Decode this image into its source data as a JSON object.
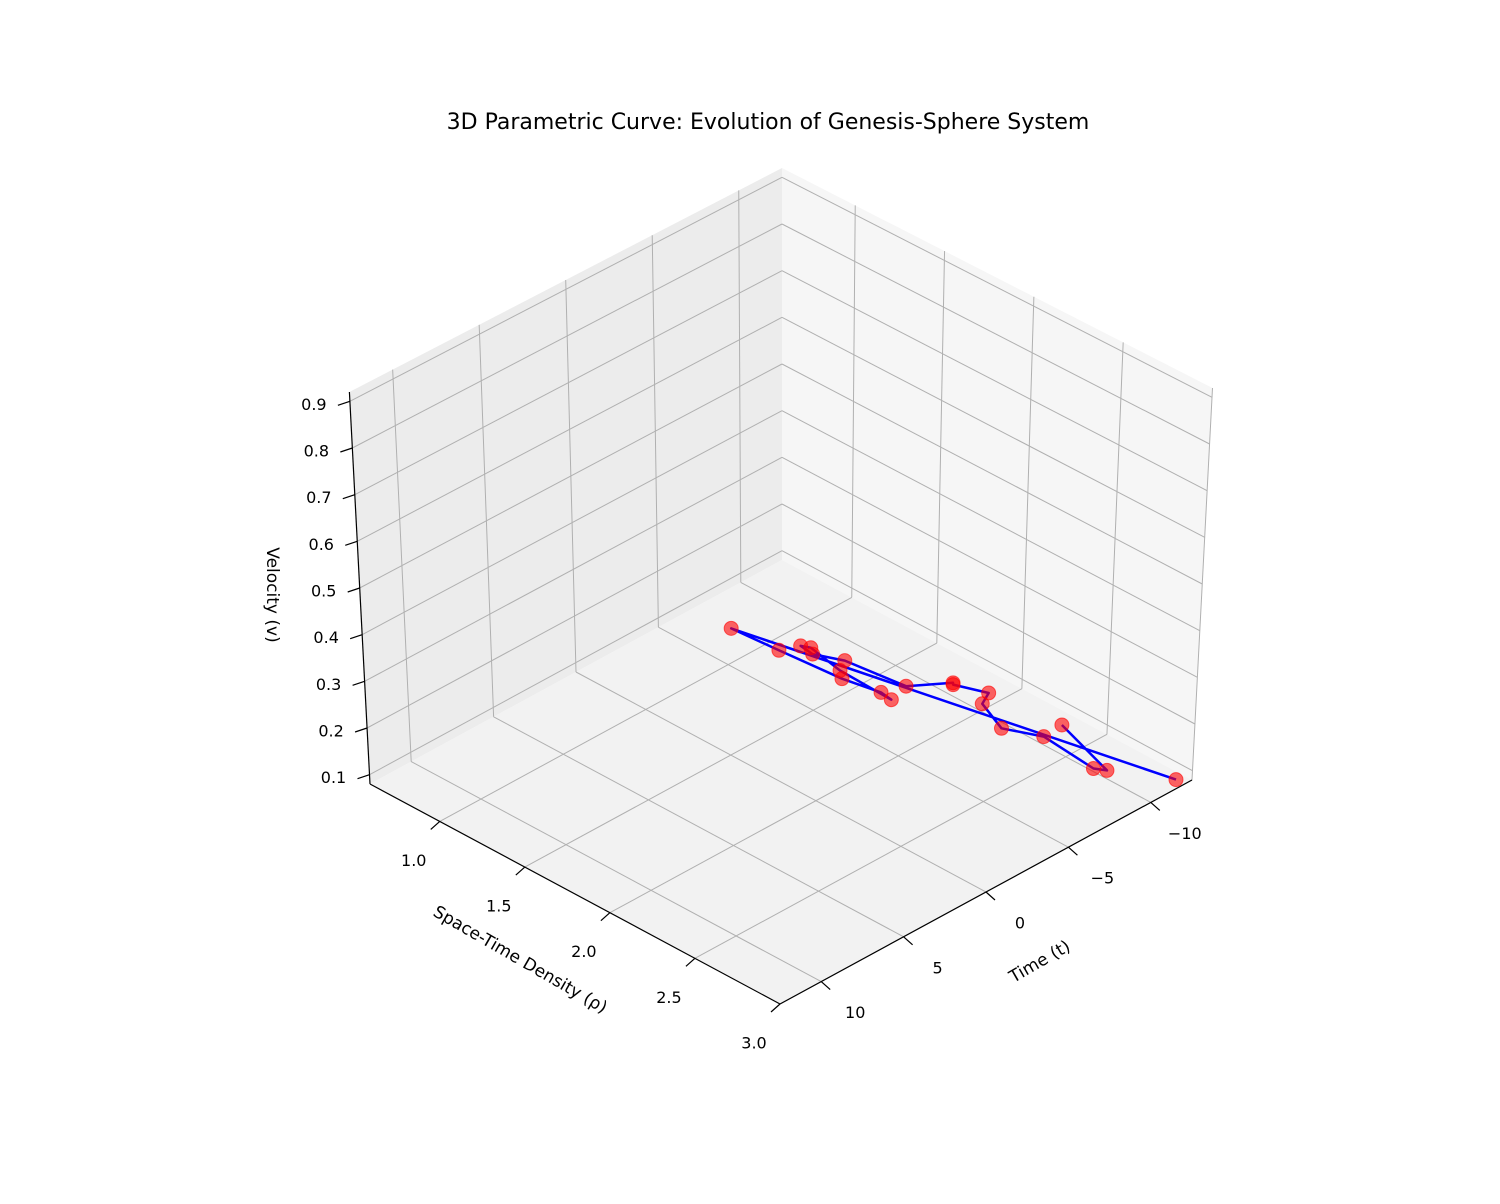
{
  "chart_data": {
    "type": "line3d",
    "title": "3D Parametric Curve: Evolution of Genesis-Sphere System",
    "x_label": "Time (t)",
    "y_label": "Space-Time Density (ρ)",
    "z_label": "Velocity (v)",
    "xlim": [
      -12.5,
      12.5
    ],
    "ylim": [
      0.59,
      3.0
    ],
    "zlim": [
      0.08,
      0.92
    ],
    "xticks": [
      {
        "value": -10,
        "label": "−10"
      },
      {
        "value": -5,
        "label": "−5"
      },
      0,
      5,
      10
    ],
    "yticks": [
      {
        "value": 1,
        "label": "1.0"
      },
      1.5,
      {
        "value": 2,
        "label": "2.0"
      },
      2.5,
      {
        "value": 3,
        "label": "3.0"
      }
    ],
    "zticks": [
      0.1,
      0.2,
      0.3,
      0.4,
      0.5,
      0.6,
      0.7,
      0.8,
      0.9
    ],
    "grid": true,
    "series": [
      {
        "color": "#0000ff",
        "marker_color": "#ff0000",
        "marker_alpha": 0.6,
        "x": [
          -11.5,
          -5.3,
          -5.5,
          -5.8,
          -6.2,
          -6.1,
          -6.2,
          -6.6,
          -6.4,
          -6.3,
          -6.9,
          -7.3,
          -8.9,
          -8.8,
          -9.4,
          -8.6,
          -7.8,
          -8.6,
          -8.3,
          -8.6,
          -9.8
        ],
        "y": [
          3.0,
          0.99,
          1.25,
          1.59,
          1.78,
          1.85,
          1.54,
          1.33,
          1.29,
          1.37,
          1.5,
          1.82,
          1.94,
          1.95,
          2.1,
          2.14,
          2.33,
          2.5,
          2.82,
          2.87,
          2.49
        ],
        "z": [
          0.1,
          0.15,
          0.15,
          0.15,
          0.15,
          0.15,
          0.15,
          0.15,
          0.15,
          0.15,
          0.15,
          0.15,
          0.15,
          0.15,
          0.15,
          0.15,
          0.15,
          0.15,
          0.15,
          0.15,
          0.15
        ]
      }
    ]
  }
}
